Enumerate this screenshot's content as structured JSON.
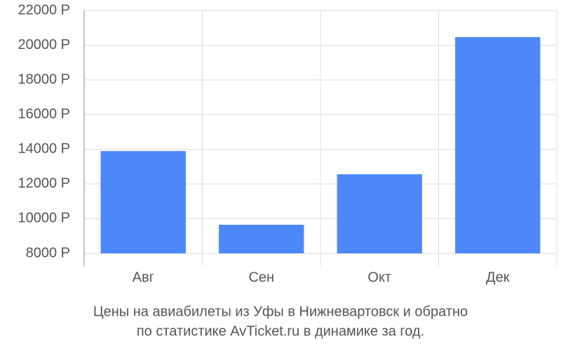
{
  "chart_data": {
    "type": "bar",
    "title": [
      "Цены на авиабилеты из Уфы в Нижневартовск и обратно",
      "по статистике AvTicket.ru в динамике за год."
    ],
    "categories": [
      "Авг",
      "Сен",
      "Окт",
      "Дек"
    ],
    "values": [
      13900,
      9650,
      12560,
      20470
    ],
    "color": "#4d88f9",
    "ylim": [
      8000,
      22000
    ],
    "yticks": [
      {
        "value": 8000,
        "label": "8000 Р"
      },
      {
        "value": 10000,
        "label": "10000 Р"
      },
      {
        "value": 12000,
        "label": "12000 Р"
      },
      {
        "value": 14000,
        "label": "14000 Р"
      },
      {
        "value": 16000,
        "label": "16000 Р"
      },
      {
        "value": 18000,
        "label": "18000 Р"
      },
      {
        "value": 20000,
        "label": "20000 Р"
      },
      {
        "value": 22000,
        "label": "22000 Р"
      }
    ],
    "grid": true
  }
}
